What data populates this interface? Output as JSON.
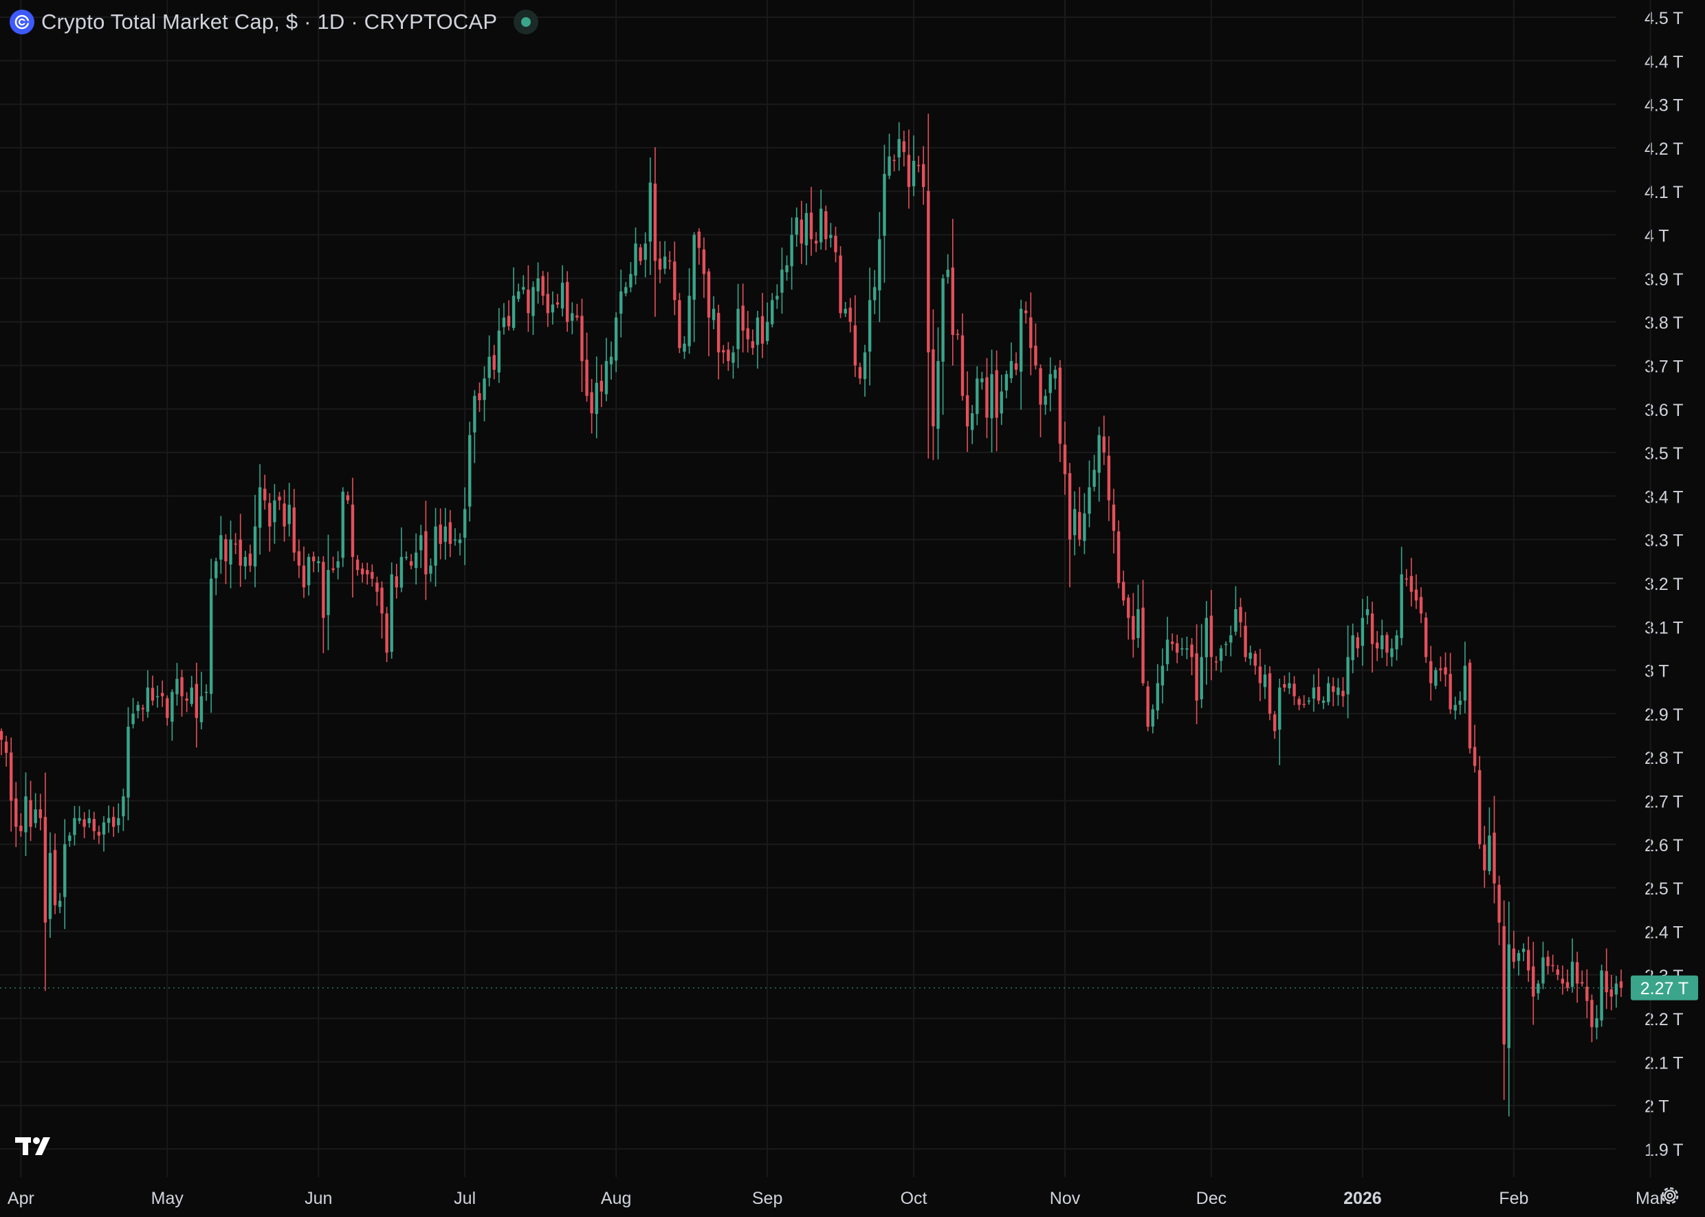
{
  "header": {
    "title": "Crypto Total Market Cap, $ · 1D · CRYPTOCAP",
    "symbol_icon": "crypto-cap-logo-icon",
    "status_icon": "market-open-dot-icon"
  },
  "footer": {
    "brand_icon": "tradingview-logo-icon",
    "settings_icon": "gear-icon"
  },
  "colors": {
    "background": "#0a0a0a",
    "up": "#3aa58b",
    "down": "#e5505b",
    "grid": "#1a1a1a",
    "axis_text": "#d1d4dc",
    "last_price_bg": "#3aa58b",
    "status_dot": "#3aa58b",
    "symbol_logo": "#3d5afe"
  },
  "chart_data": {
    "type": "candlestick",
    "symbol": "CRYPTOCAP",
    "interval": "1D",
    "y_unit": "T",
    "y_axis": {
      "min": 1.85,
      "max": 4.53,
      "side": "right",
      "ticks": [
        {
          "value": 1.9,
          "label": "1.9 T"
        },
        {
          "value": 2.0,
          "label": "2 T"
        },
        {
          "value": 2.1,
          "label": "2.1 T"
        },
        {
          "value": 2.2,
          "label": "2.2 T"
        },
        {
          "value": 2.3,
          "label": "2.3 T"
        },
        {
          "value": 2.4,
          "label": "2.4 T"
        },
        {
          "value": 2.5,
          "label": "2.5 T"
        },
        {
          "value": 2.6,
          "label": "2.6 T"
        },
        {
          "value": 2.7,
          "label": "2.7 T"
        },
        {
          "value": 2.8,
          "label": "2.8 T"
        },
        {
          "value": 2.9,
          "label": "2.9 T"
        },
        {
          "value": 3.0,
          "label": "3 T"
        },
        {
          "value": 3.1,
          "label": "3.1 T"
        },
        {
          "value": 3.2,
          "label": "3.2 T"
        },
        {
          "value": 3.3,
          "label": "3.3 T"
        },
        {
          "value": 3.4,
          "label": "3.4 T"
        },
        {
          "value": 3.5,
          "label": "3.5 T"
        },
        {
          "value": 3.6,
          "label": "3.6 T"
        },
        {
          "value": 3.7,
          "label": "3.7 T"
        },
        {
          "value": 3.8,
          "label": "3.8 T"
        },
        {
          "value": 3.9,
          "label": "3.9 T"
        },
        {
          "value": 4.0,
          "label": "4 T"
        },
        {
          "value": 4.1,
          "label": "4.1 T"
        },
        {
          "value": 4.2,
          "label": "4.2 T"
        },
        {
          "value": 4.3,
          "label": "4.3 T"
        },
        {
          "value": 4.4,
          "label": "4.4 T"
        },
        {
          "value": 4.5,
          "label": "4.5 T"
        }
      ]
    },
    "x_axis": {
      "start_date": "2025-03-28",
      "end_date": "2026-03-03",
      "ticks": [
        {
          "date": "2025-04-01",
          "label": "Apr",
          "bold": false
        },
        {
          "date": "2025-05-01",
          "label": "May",
          "bold": false
        },
        {
          "date": "2025-06-01",
          "label": "Jun",
          "bold": false
        },
        {
          "date": "2025-07-01",
          "label": "Jul",
          "bold": false
        },
        {
          "date": "2025-08-01",
          "label": "Aug",
          "bold": false
        },
        {
          "date": "2025-09-01",
          "label": "Sep",
          "bold": false
        },
        {
          "date": "2025-10-01",
          "label": "Oct",
          "bold": false
        },
        {
          "date": "2025-11-01",
          "label": "Nov",
          "bold": false
        },
        {
          "date": "2025-12-01",
          "label": "Dec",
          "bold": false
        },
        {
          "date": "2026-01-01",
          "label": "2026",
          "bold": true
        },
        {
          "date": "2026-02-01",
          "label": "Feb",
          "bold": false
        },
        {
          "date": "2026-03-01",
          "label": "Mar",
          "bold": false
        }
      ]
    },
    "grid": true,
    "last_price": {
      "value": 2.27,
      "label": "2.27 T"
    },
    "closes": [
      2.84,
      2.81,
      2.7,
      2.64,
      2.63,
      2.71,
      2.64,
      2.68,
      2.66,
      2.42,
      2.58,
      2.46,
      2.47,
      2.6,
      2.62,
      2.66,
      2.66,
      2.64,
      2.66,
      2.63,
      2.62,
      2.65,
      2.66,
      2.64,
      2.66,
      2.71,
      2.87,
      2.9,
      2.92,
      2.91,
      2.96,
      2.93,
      2.94,
      2.94,
      2.89,
      2.95,
      2.98,
      2.94,
      2.93,
      2.96,
      2.89,
      2.94,
      2.95,
      3.21,
      3.25,
      3.31,
      3.25,
      3.3,
      3.29,
      3.24,
      3.26,
      3.24,
      3.33,
      3.42,
      3.39,
      3.33,
      3.39,
      3.39,
      3.33,
      3.38,
      3.27,
      3.24,
      3.19,
      3.26,
      3.25,
      3.25,
      3.12,
      3.23,
      3.23,
      3.25,
      3.41,
      3.39,
      3.26,
      3.23,
      3.22,
      3.22,
      3.21,
      3.18,
      3.13,
      3.04,
      3.22,
      3.19,
      3.26,
      3.26,
      3.24,
      3.27,
      3.31,
      3.22,
      3.24,
      3.33,
      3.29,
      3.33,
      3.29,
      3.3,
      3.3,
      3.37,
      3.54,
      3.63,
      3.62,
      3.67,
      3.72,
      3.69,
      3.78,
      3.81,
      3.79,
      3.86,
      3.87,
      3.88,
      3.82,
      3.88,
      3.9,
      3.86,
      3.82,
      3.84,
      3.84,
      3.89,
      3.8,
      3.82,
      3.81,
      3.71,
      3.63,
      3.59,
      3.66,
      3.64,
      3.71,
      3.72,
      3.81,
      3.87,
      3.88,
      3.91,
      3.98,
      3.94,
      3.98,
      4.12,
      3.94,
      3.92,
      3.95,
      3.94,
      3.85,
      3.74,
      3.75,
      3.86,
      4,
      3.97,
      3.91,
      3.81,
      3.83,
      3.73,
      3.73,
      3.71,
      3.73,
      3.83,
      3.78,
      3.76,
      3.74,
      3.81,
      3.75,
      3.8,
      3.85,
      3.86,
      3.92,
      3.93,
      4,
      4.04,
      3.98,
      4.05,
      3.99,
      3.98,
      4.06,
      3.99,
      4,
      3.96,
      3.82,
      3.83,
      3.8,
      3.7,
      3.67,
      3.73,
      3.85,
      3.88,
      3.99,
      4.14,
      4.18,
      4.17,
      4.22,
      4.19,
      4.11,
      4.17,
      4.16,
      4.11,
      3.73,
      3.56,
      3.71,
      3.9,
      3.92,
      3.77,
      3.77,
      3.63,
      3.56,
      3.59,
      3.67,
      3.67,
      3.58,
      3.68,
      3.58,
      3.64,
      3.68,
      3.71,
      3.69,
      3.83,
      3.82,
      3.74,
      3.7,
      3.61,
      3.63,
      3.68,
      3.69,
      3.52,
      3.45,
      3.3,
      3.37,
      3.3,
      3.36,
      3.42,
      3.46,
      3.54,
      3.5,
      3.39,
      3.32,
      3.2,
      3.16,
      3.12,
      3.07,
      3.14,
      2.97,
      2.87,
      2.91,
      2.97,
      3.01,
      3.07,
      3.06,
      3.04,
      3.05,
      3.05,
      3.03,
      2.93,
      3.03,
      3.12,
      3.03,
      3.02,
      3.05,
      3.06,
      3.08,
      3.14,
      3.11,
      3.03,
      3.04,
      3.01,
      2.97,
      2.99,
      2.9,
      2.86,
      2.96,
      2.96,
      2.97,
      2.94,
      2.92,
      2.92,
      2.93,
      2.96,
      2.93,
      2.93,
      2.97,
      2.95,
      2.96,
      2.94,
      3.03,
      3.08,
      3.05,
      3.12,
      3.14,
      3.06,
      3.05,
      3.08,
      3.04,
      3.05,
      3.08,
      3.22,
      3.21,
      3.18,
      3.16,
      3.13,
      3.03,
      2.97,
      3,
      3,
      2.99,
      2.91,
      2.92,
      2.93,
      3.01,
      2.82,
      2.78,
      2.6,
      2.54,
      2.62,
      2.51,
      2.42,
      2.14,
      2.37,
      2.33,
      2.35,
      2.36,
      2.31,
      2.25,
      2.28,
      2.34,
      2.32,
      2.32,
      2.3,
      2.28,
      2.27,
      2.33,
      2.28,
      2.28,
      2.24,
      2.18,
      2.2,
      2.31,
      2.26,
      2.25,
      2.28,
      2.27
    ]
  }
}
